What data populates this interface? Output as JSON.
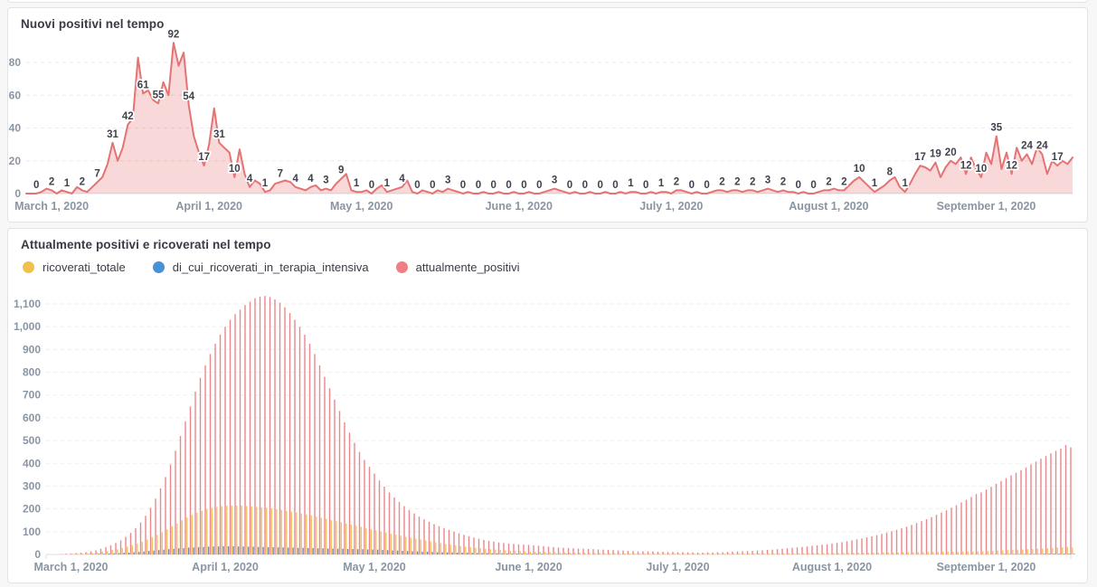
{
  "charts": {
    "top": {
      "title": "Nuovi positivi nel tempo"
    },
    "bottom": {
      "title": "Attualmente positivi e ricoverati nel tempo",
      "legend": [
        {
          "label": "ricoverati_totale",
          "color": "#f0c24b"
        },
        {
          "label": "di_cui_ricoverati_in_terapia_intensiva",
          "color": "#4a90d9"
        },
        {
          "label": "attualmente_positivi",
          "color": "#ee8084"
        }
      ]
    }
  },
  "chart_data": [
    {
      "type": "area",
      "title": "Nuovi positivi nel tempo",
      "color": "#e57373",
      "fill": "rgba(229,115,115,0.28)",
      "ylim": [
        0,
        100
      ],
      "grid": "dashed-horizontal",
      "label_start": 2,
      "label_every": 3,
      "yticks": [
        {
          "value": 0,
          "label": "0"
        },
        {
          "value": 20,
          "label": "20"
        },
        {
          "value": 40,
          "label": "40"
        },
        {
          "value": 60,
          "label": "60"
        },
        {
          "value": 80,
          "label": "80"
        }
      ],
      "x_tick_labels": [
        "March 1, 2020",
        "April 1, 2020",
        "May 1, 2020",
        "June 1, 2020",
        "July 1, 2020",
        "August 1, 2020",
        "September 1, 2020"
      ],
      "x_tick_indices": [
        5,
        36,
        66,
        97,
        127,
        158,
        189
      ],
      "values": [
        0,
        0,
        0,
        1,
        3,
        2,
        0,
        2,
        1,
        0,
        4,
        2,
        1,
        4,
        7,
        10,
        18,
        31,
        20,
        28,
        42,
        46,
        83,
        61,
        63,
        57,
        55,
        68,
        60,
        92,
        78,
        86,
        54,
        35,
        25,
        17,
        30,
        52,
        31,
        28,
        25,
        10,
        27,
        12,
        4,
        8,
        6,
        1,
        2,
        6,
        7,
        8,
        7,
        4,
        3,
        2,
        4,
        5,
        2,
        3,
        2,
        6,
        9,
        12,
        2,
        1,
        1,
        2,
        0,
        3,
        5,
        1,
        2,
        3,
        4,
        8,
        1,
        0,
        2,
        1,
        0,
        2,
        1,
        3,
        2,
        1,
        0,
        1,
        0,
        0,
        1,
        0,
        0,
        1,
        0,
        0,
        1,
        0,
        0,
        1,
        0,
        0,
        1,
        2,
        3,
        2,
        1,
        0,
        1,
        0,
        0,
        1,
        0,
        0,
        1,
        0,
        0,
        1,
        0,
        1,
        1,
        0,
        0,
        1,
        0,
        1,
        1,
        0,
        2,
        2,
        1,
        0,
        1,
        0,
        0,
        1,
        2,
        2,
        1,
        2,
        2,
        1,
        2,
        2,
        1,
        2,
        3,
        2,
        1,
        2,
        1,
        1,
        0,
        1,
        0,
        0,
        1,
        2,
        2,
        3,
        2,
        2,
        5,
        8,
        10,
        7,
        4,
        1,
        3,
        5,
        8,
        10,
        4,
        1,
        6,
        12,
        17,
        16,
        14,
        19,
        10,
        16,
        20,
        18,
        22,
        12,
        22,
        15,
        10,
        25,
        18,
        35,
        15,
        25,
        12,
        28,
        20,
        24,
        18,
        28,
        24,
        12,
        20,
        17,
        20,
        18,
        22
      ]
    },
    {
      "type": "bar",
      "title": "Attualmente positivi e ricoverati nel tempo",
      "legend_position": "top",
      "ylim": [
        0,
        1180
      ],
      "grid": "dashed-horizontal",
      "yticks": [
        {
          "value": 0,
          "label": "0"
        },
        {
          "value": 100,
          "label": "100"
        },
        {
          "value": 200,
          "label": "200"
        },
        {
          "value": 300,
          "label": "300"
        },
        {
          "value": 400,
          "label": "400"
        },
        {
          "value": 500,
          "label": "500"
        },
        {
          "value": 600,
          "label": "600"
        },
        {
          "value": 700,
          "label": "700"
        },
        {
          "value": 800,
          "label": "800"
        },
        {
          "value": 900,
          "label": "900"
        },
        {
          "value": 1000,
          "label": "1,000"
        },
        {
          "value": 1100,
          "label": "1,100"
        }
      ],
      "x_tick_labels": [
        "March 1, 2020",
        "April 1, 2020",
        "May 1, 2020",
        "June 1, 2020",
        "July 1, 2020",
        "August 1, 2020",
        "September 1, 2020"
      ],
      "x_tick_indices": [
        5,
        36,
        66,
        97,
        127,
        158,
        189
      ],
      "series": [
        {
          "name": "ricoverati_totale",
          "color": "#efc55f",
          "values": [
            0,
            0,
            0,
            1,
            1,
            2,
            3,
            4,
            5,
            7,
            9,
            12,
            15,
            19,
            23,
            28,
            34,
            41,
            48,
            56,
            65,
            75,
            86,
            97,
            110,
            123,
            136,
            150,
            162,
            173,
            183,
            192,
            199,
            205,
            209,
            212,
            214,
            215,
            215,
            214,
            213,
            211,
            209,
            207,
            205,
            202,
            199,
            196,
            192,
            188,
            184,
            180,
            176,
            171,
            166,
            161,
            156,
            151,
            146,
            141,
            136,
            131,
            126,
            121,
            116,
            111,
            106,
            101,
            96,
            91,
            87,
            82,
            78,
            73,
            69,
            65,
            61,
            57,
            53,
            50,
            46,
            43,
            40,
            37,
            34,
            32,
            29,
            27,
            25,
            23,
            21,
            19,
            18,
            16,
            15,
            14,
            13,
            12,
            12,
            11,
            11,
            10,
            10,
            9,
            9,
            8,
            8,
            7,
            7,
            6,
            6,
            6,
            5,
            5,
            5,
            5,
            4,
            4,
            4,
            4,
            4,
            3,
            3,
            3,
            3,
            3,
            3,
            3,
            3,
            3,
            3,
            3,
            3,
            3,
            3,
            3,
            3,
            3,
            3,
            3,
            4,
            4,
            4,
            4,
            4,
            4,
            4,
            5,
            5,
            5,
            5,
            5,
            5,
            6,
            6,
            6,
            6,
            6,
            6,
            6,
            7,
            7,
            7,
            7,
            8,
            8,
            8,
            8,
            9,
            9,
            9,
            9,
            10,
            10,
            10,
            10,
            11,
            11,
            11,
            11,
            12,
            12,
            12,
            12,
            13,
            13,
            13,
            14,
            14,
            15,
            16,
            17,
            18,
            19,
            20,
            21,
            22,
            23,
            24,
            25,
            26,
            27,
            29,
            30,
            31,
            33,
            30
          ]
        },
        {
          "name": "di_cui_ricoverati_in_terapia_intensiva",
          "color": "#6d87b0",
          "values": [
            0,
            0,
            0,
            0,
            0,
            1,
            1,
            1,
            2,
            2,
            3,
            3,
            4,
            5,
            6,
            7,
            8,
            10,
            11,
            13,
            15,
            17,
            19,
            21,
            23,
            25,
            27,
            28,
            30,
            31,
            32,
            33,
            34,
            35,
            35,
            36,
            36,
            36,
            35,
            35,
            34,
            34,
            33,
            33,
            32,
            32,
            31,
            31,
            30,
            30,
            29,
            29,
            28,
            28,
            27,
            27,
            26,
            26,
            25,
            25,
            24,
            24,
            23,
            23,
            22,
            22,
            21,
            20,
            19,
            18,
            17,
            16,
            15,
            14,
            13,
            12,
            12,
            11,
            10,
            10,
            9,
            9,
            8,
            8,
            7,
            7,
            6,
            6,
            6,
            5,
            5,
            5,
            4,
            4,
            4,
            4,
            3,
            3,
            3,
            3,
            2,
            2,
            2,
            2,
            2,
            2,
            1,
            1,
            1,
            1,
            1,
            1,
            1,
            1,
            1,
            1,
            1,
            0,
            0,
            0,
            0,
            0,
            0,
            0,
            0,
            0,
            0,
            0,
            0,
            0,
            0,
            0,
            0,
            0,
            0,
            0,
            0,
            0,
            0,
            0,
            0,
            0,
            0,
            0,
            0,
            0,
            0,
            0,
            0,
            0,
            0,
            0,
            0,
            0,
            0,
            0,
            0,
            0,
            0,
            0,
            0,
            0,
            0,
            0,
            0,
            0,
            0,
            0,
            1,
            1,
            1,
            1,
            1,
            1,
            1,
            1,
            1,
            1,
            1,
            1,
            1,
            1,
            1,
            1,
            1,
            1,
            1,
            1,
            1,
            1,
            1,
            1,
            2,
            2,
            2,
            2,
            2,
            2,
            2,
            2,
            3,
            3,
            3,
            3,
            3,
            3,
            3
          ]
        },
        {
          "name": "attualmente_positivi",
          "color": "#e8878c",
          "values": [
            0,
            0,
            1,
            2,
            3,
            4,
            6,
            8,
            10,
            14,
            18,
            25,
            32,
            40,
            50,
            62,
            78,
            95,
            115,
            140,
            170,
            205,
            245,
            290,
            340,
            395,
            455,
            520,
            585,
            650,
            715,
            775,
            830,
            880,
            925,
            965,
            1000,
            1030,
            1055,
            1075,
            1095,
            1110,
            1125,
            1132,
            1135,
            1130,
            1120,
            1105,
            1085,
            1060,
            1030,
            1000,
            965,
            925,
            880,
            830,
            780,
            730,
            680,
            630,
            580,
            535,
            490,
            450,
            415,
            385,
            355,
            325,
            298,
            272,
            250,
            230,
            212,
            195,
            180,
            166,
            154,
            143,
            133,
            124,
            116,
            108,
            100,
            93,
            86,
            80,
            74,
            69,
            64,
            60,
            56,
            53,
            50,
            48,
            46,
            44,
            43,
            42,
            40,
            38,
            36,
            34,
            32,
            30,
            29,
            28,
            27,
            26,
            25,
            24,
            23,
            22,
            21,
            20,
            19,
            18,
            17,
            16,
            15,
            14,
            14,
            13,
            13,
            12,
            12,
            11,
            11,
            10,
            10,
            9,
            9,
            8,
            8,
            9,
            9,
            10,
            10,
            11,
            12,
            13,
            14,
            15,
            16,
            17,
            18,
            20,
            21,
            23,
            25,
            27,
            29,
            31,
            33,
            35,
            38,
            40,
            43,
            45,
            48,
            51,
            54,
            58,
            62,
            66,
            70,
            75,
            80,
            85,
            90,
            96,
            102,
            108,
            115,
            122,
            130,
            138,
            146,
            155,
            164,
            174,
            184,
            194,
            205,
            216,
            228,
            240,
            252,
            265,
            272,
            285,
            297,
            310,
            322,
            335,
            347,
            358,
            370,
            382,
            395,
            408,
            420,
            432,
            444,
            455,
            465,
            480,
            470
          ]
        }
      ]
    }
  ]
}
